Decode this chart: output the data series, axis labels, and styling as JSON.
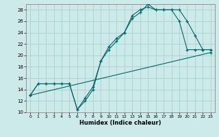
{
  "xlabel": "Humidex (Indice chaleur)",
  "bg_color": "#cceaea",
  "grid_color": "#aacfcf",
  "line_color": "#006666",
  "xlim": [
    -0.5,
    23.5
  ],
  "ylim": [
    10,
    29
  ],
  "yticks": [
    10,
    12,
    14,
    16,
    18,
    20,
    22,
    24,
    26,
    28
  ],
  "xticks": [
    0,
    1,
    2,
    3,
    4,
    5,
    6,
    7,
    8,
    9,
    10,
    11,
    12,
    13,
    14,
    15,
    16,
    17,
    18,
    19,
    20,
    21,
    22,
    23
  ],
  "line1_x": [
    0,
    1,
    2,
    3,
    4,
    5,
    6,
    7,
    8,
    9,
    10,
    11,
    12,
    13,
    14,
    15,
    16,
    17,
    18,
    19,
    20,
    21,
    22,
    23
  ],
  "line1_y": [
    13,
    15,
    15,
    15,
    15,
    15,
    10.5,
    12,
    14,
    19,
    21,
    22.5,
    24,
    26.5,
    27.5,
    29,
    28,
    28,
    28,
    28,
    26,
    23.5,
    21,
    21
  ],
  "line2_x": [
    0,
    1,
    2,
    3,
    4,
    5,
    6,
    7,
    8,
    9,
    10,
    11,
    12,
    13,
    14,
    15,
    16,
    17,
    18,
    19,
    20,
    21,
    22,
    23
  ],
  "line2_y": [
    13,
    15,
    15,
    15,
    15,
    15,
    10.5,
    12.5,
    14.5,
    19,
    21.5,
    23,
    24,
    27,
    28,
    28.5,
    28,
    28,
    28,
    26,
    21,
    21,
    21,
    21
  ],
  "line3_x": [
    0,
    23
  ],
  "line3_y": [
    13,
    20.5
  ]
}
